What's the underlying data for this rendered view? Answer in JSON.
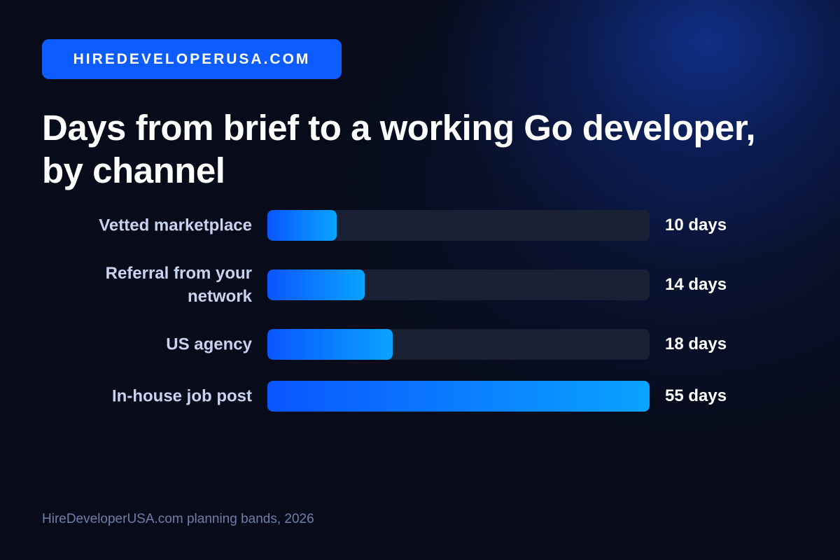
{
  "badge": {
    "label": "HIREDEVELOPERUSA.COM"
  },
  "colors": {
    "accent": "#0d5cff",
    "bar_start": "#0a55ff",
    "bar_end": "#0aa3ff",
    "track": "#1a2134",
    "background": "#070b1a"
  },
  "chart_data": {
    "type": "bar",
    "orientation": "horizontal",
    "title": "Days from brief to a working Go developer, by channel",
    "categories": [
      "Vetted marketplace",
      "Referral from your network",
      "US agency",
      "In-house job post"
    ],
    "values": [
      10,
      14,
      18,
      55
    ],
    "value_labels": [
      "10 days",
      "14 days",
      "18 days",
      "55 days"
    ],
    "unit": "days",
    "xlim": [
      0,
      55
    ],
    "grid": false
  },
  "footer": {
    "source": "HireDeveloperUSA.com planning bands, 2026"
  }
}
